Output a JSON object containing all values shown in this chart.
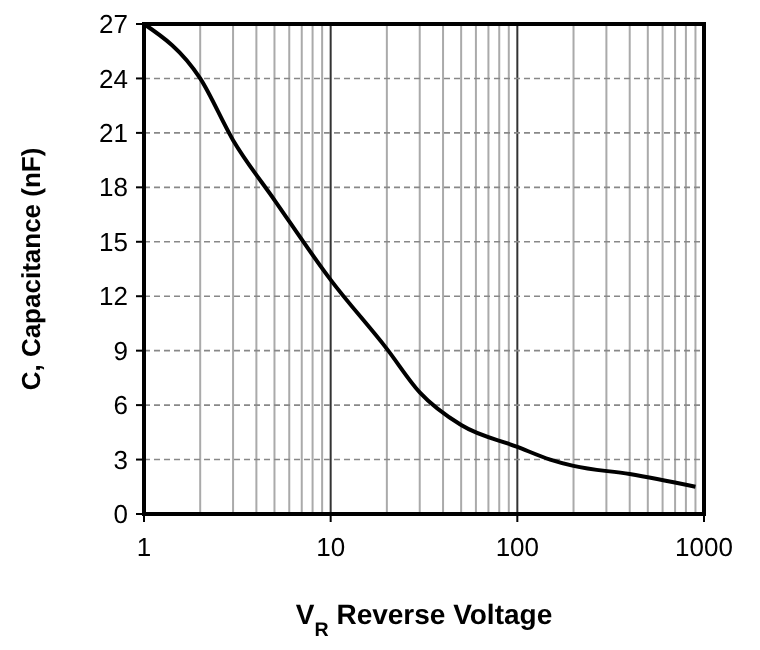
{
  "chart_data": {
    "type": "line",
    "xlabel": "V$_{R}$ Reverse Voltage",
    "ylabel": "C, Capacitance (nF)",
    "log": "x",
    "grid": true,
    "marker": "none",
    "line_style": "solid",
    "xlim": [
      1,
      1000
    ],
    "xticks": [
      1,
      10,
      100,
      1000
    ],
    "ylim": [
      0,
      27
    ],
    "yticks": [
      0,
      3,
      6,
      9,
      12,
      15,
      18,
      21,
      24,
      27
    ],
    "series": [
      {
        "color": "#000000",
        "x": [
          1,
          2,
          3,
          5,
          10,
          20,
          30,
          50,
          100,
          150,
          200,
          400,
          900
        ],
        "values": [
          27,
          24,
          20.6,
          17.3,
          12.9,
          9.1,
          6.7,
          4.9,
          3.7,
          3.0,
          2.65,
          2.2,
          1.5
        ]
      }
    ]
  }
}
